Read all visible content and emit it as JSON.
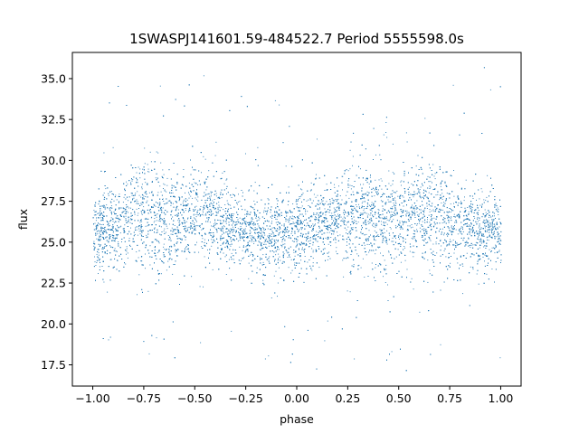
{
  "chart_data": {
    "type": "scatter",
    "title": "1SWASPJ141601.59-484522.7 Period 5555598.0s",
    "xlabel": "phase",
    "ylabel": "flux",
    "xlim": [
      -1.1,
      1.1
    ],
    "ylim": [
      16.2,
      36.6
    ],
    "x_ticks": [
      -1.0,
      -0.75,
      -0.5,
      -0.25,
      0.0,
      0.25,
      0.5,
      0.75,
      1.0
    ],
    "x_tick_labels": [
      "−1.00",
      "−0.75",
      "−0.50",
      "−0.25",
      "0.00",
      "0.25",
      "0.50",
      "0.75",
      "1.00"
    ],
    "y_ticks": [
      17.5,
      20.0,
      22.5,
      25.0,
      27.5,
      30.0,
      32.5,
      35.0
    ],
    "y_tick_labels": [
      "17.5",
      "20.0",
      "22.5",
      "25.0",
      "27.5",
      "30.0",
      "32.5",
      "35.0"
    ],
    "grid": false,
    "legend": "none",
    "marker_color": "#1f77b4",
    "series": [
      {
        "x_range": [
          -1.0,
          1.0
        ],
        "core_band_phases": [
          -1.0,
          -0.9,
          -0.75,
          -0.6,
          -0.45,
          -0.3,
          -0.15,
          0.0,
          0.15,
          0.3,
          0.45,
          0.6,
          0.75,
          0.9,
          1.0
        ],
        "core_band_low": [
          22.5,
          23.0,
          23.0,
          22.5,
          23.0,
          23.5,
          22.8,
          22.5,
          23.5,
          23.0,
          22.5,
          23.0,
          22.8,
          23.0,
          22.5
        ],
        "core_band_high": [
          28.5,
          29.0,
          31.0,
          30.0,
          30.5,
          28.5,
          28.0,
          28.5,
          29.0,
          31.0,
          30.0,
          30.5,
          29.5,
          28.5,
          28.5
        ],
        "median_flux": 26.0,
        "outlier_range": [
          17.0,
          35.8
        ]
      }
    ]
  }
}
